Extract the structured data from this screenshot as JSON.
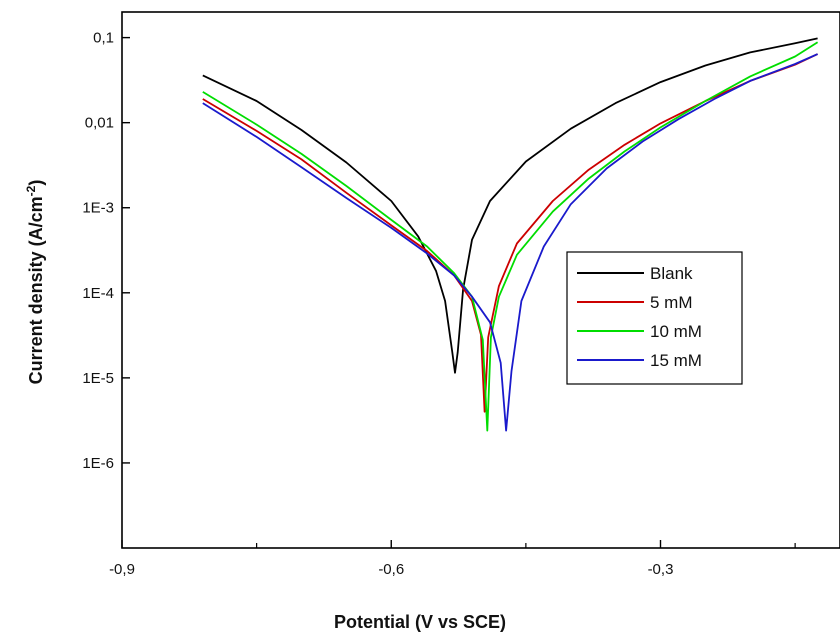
{
  "chart_data": {
    "type": "line",
    "title": "",
    "xlabel": "Potential (V vs SCE)",
    "ylabel": "Current density (A/cm",
    "ylabel_superscript": "-2",
    "ylabel_close": ")",
    "xlim": [
      -0.9,
      -0.1
    ],
    "ylim": [
      1e-07,
      0.2
    ],
    "y_scale": "log",
    "grid": false,
    "legend_position": "center-right",
    "x_ticks": [
      {
        "value": -0.9,
        "label": "-0,9"
      },
      {
        "value": -0.6,
        "label": "-0,6"
      },
      {
        "value": -0.3,
        "label": "-0,3"
      }
    ],
    "y_ticks": [
      {
        "value": 0.1,
        "label": "0,1"
      },
      {
        "value": 0.01,
        "label": "0,01"
      },
      {
        "value": 0.001,
        "label": "1E-3"
      },
      {
        "value": 0.0001,
        "label": "1E-4"
      },
      {
        "value": 1e-05,
        "label": "1E-5"
      },
      {
        "value": 1e-06,
        "label": "1E-6"
      }
    ],
    "series": [
      {
        "name": "Blank",
        "color": "#000000",
        "points": [
          [
            -0.81,
            0.036
          ],
          [
            -0.75,
            0.018
          ],
          [
            -0.7,
            0.0082
          ],
          [
            -0.65,
            0.0034
          ],
          [
            -0.6,
            0.0012
          ],
          [
            -0.57,
            0.00046
          ],
          [
            -0.55,
            0.00018
          ],
          [
            -0.54,
            8e-05
          ],
          [
            -0.532,
            2e-05
          ],
          [
            -0.529,
            1.15e-05
          ],
          [
            -0.526,
            2e-05
          ],
          [
            -0.52,
            0.00011
          ],
          [
            -0.51,
            0.00042
          ],
          [
            -0.49,
            0.0012
          ],
          [
            -0.45,
            0.0035
          ],
          [
            -0.4,
            0.0085
          ],
          [
            -0.35,
            0.017
          ],
          [
            -0.3,
            0.03
          ],
          [
            -0.25,
            0.047
          ],
          [
            -0.2,
            0.067
          ],
          [
            -0.15,
            0.086
          ],
          [
            -0.125,
            0.098
          ]
        ]
      },
      {
        "name": "5 mM",
        "color": "#cc0000",
        "points": [
          [
            -0.81,
            0.019
          ],
          [
            -0.75,
            0.008
          ],
          [
            -0.7,
            0.0037
          ],
          [
            -0.65,
            0.0015
          ],
          [
            -0.6,
            0.00062
          ],
          [
            -0.56,
            0.00031
          ],
          [
            -0.53,
            0.00016
          ],
          [
            -0.51,
            8e-05
          ],
          [
            -0.5,
            3.2e-05
          ],
          [
            -0.496,
            4e-06
          ],
          [
            -0.492,
            3e-05
          ],
          [
            -0.48,
            0.00012
          ],
          [
            -0.46,
            0.00038
          ],
          [
            -0.42,
            0.0012
          ],
          [
            -0.38,
            0.0028
          ],
          [
            -0.34,
            0.0055
          ],
          [
            -0.3,
            0.0098
          ],
          [
            -0.25,
            0.018
          ],
          [
            -0.2,
            0.031
          ],
          [
            -0.15,
            0.048
          ],
          [
            -0.125,
            0.064
          ]
        ]
      },
      {
        "name": "10 mM",
        "color": "#00dd00",
        "points": [
          [
            -0.81,
            0.023
          ],
          [
            -0.75,
            0.0095
          ],
          [
            -0.7,
            0.0043
          ],
          [
            -0.65,
            0.0018
          ],
          [
            -0.6,
            0.00072
          ],
          [
            -0.56,
            0.00035
          ],
          [
            -0.53,
            0.00017
          ],
          [
            -0.51,
            9e-05
          ],
          [
            -0.498,
            2.8e-05
          ],
          [
            -0.493,
            2.4e-06
          ],
          [
            -0.489,
            3e-05
          ],
          [
            -0.48,
            9e-05
          ],
          [
            -0.46,
            0.00028
          ],
          [
            -0.42,
            0.0009
          ],
          [
            -0.38,
            0.0022
          ],
          [
            -0.34,
            0.0046
          ],
          [
            -0.3,
            0.0088
          ],
          [
            -0.25,
            0.018
          ],
          [
            -0.2,
            0.035
          ],
          [
            -0.15,
            0.06
          ],
          [
            -0.125,
            0.088
          ]
        ]
      },
      {
        "name": "15 mM",
        "color": "#1a1acc",
        "points": [
          [
            -0.81,
            0.017
          ],
          [
            -0.75,
            0.0068
          ],
          [
            -0.7,
            0.003
          ],
          [
            -0.65,
            0.0013
          ],
          [
            -0.6,
            0.00058
          ],
          [
            -0.56,
            0.00029
          ],
          [
            -0.53,
            0.00016
          ],
          [
            -0.51,
            9e-05
          ],
          [
            -0.49,
            4.5e-05
          ],
          [
            -0.478,
            1.5e-05
          ],
          [
            -0.472,
            2.4e-06
          ],
          [
            -0.466,
            1.2e-05
          ],
          [
            -0.455,
            8e-05
          ],
          [
            -0.43,
            0.00035
          ],
          [
            -0.4,
            0.0011
          ],
          [
            -0.36,
            0.0029
          ],
          [
            -0.32,
            0.006
          ],
          [
            -0.28,
            0.011
          ],
          [
            -0.24,
            0.019
          ],
          [
            -0.2,
            0.031
          ],
          [
            -0.15,
            0.049
          ],
          [
            -0.125,
            0.064
          ]
        ]
      }
    ]
  }
}
